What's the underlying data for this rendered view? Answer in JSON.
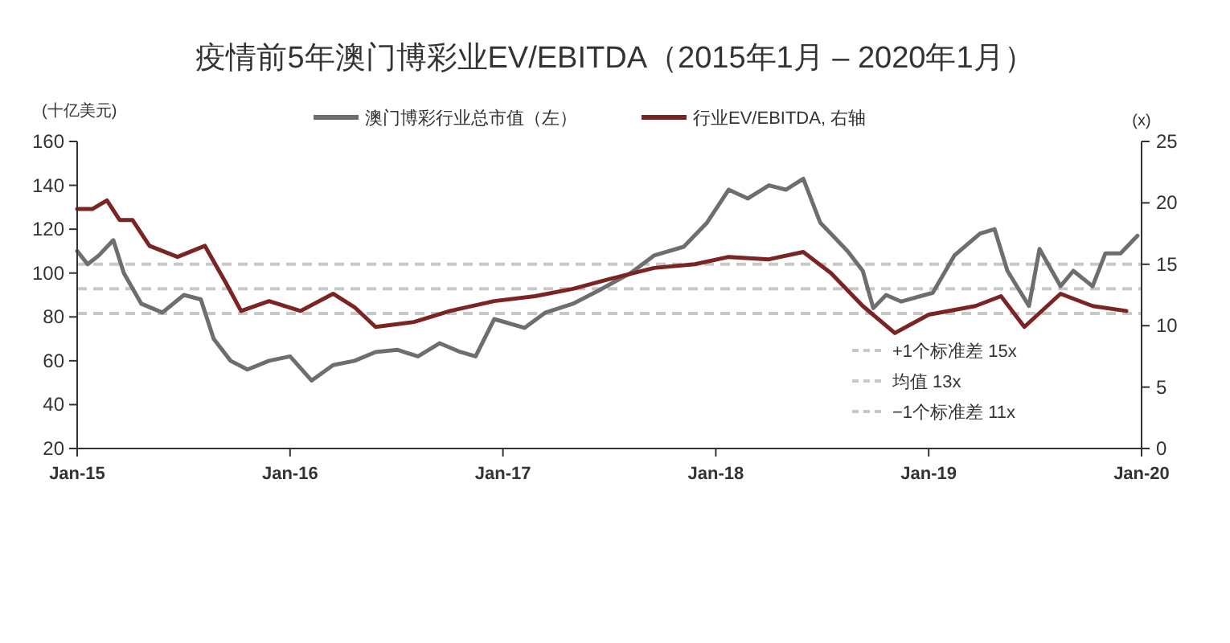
{
  "chart_data": {
    "type": "line",
    "title": "疫情前5年澳门博彩业EV/EBITDA（2015年1月 – 2020年1月）",
    "ylabel": "(十亿美元)",
    "y2label": "(x)",
    "xlim": [
      "2015-01-01",
      "2020-01-01"
    ],
    "xticks": [
      {
        "value": "2015-01-01",
        "label": "Jan-15"
      },
      {
        "value": "2016-01-01",
        "label": "Jan-16"
      },
      {
        "value": "2017-01-01",
        "label": "Jan-17"
      },
      {
        "value": "2018-01-01",
        "label": "Jan-18"
      },
      {
        "value": "2019-01-01",
        "label": "Jan-19"
      },
      {
        "value": "2020-01-01",
        "label": "Jan-20"
      }
    ],
    "ylim": [
      20,
      160
    ],
    "yticks": [
      20,
      40,
      60,
      80,
      100,
      120,
      140,
      160
    ],
    "y2lim": [
      0,
      25
    ],
    "y2ticks": [
      0,
      5,
      10,
      15,
      20,
      25
    ],
    "legend": "top",
    "grid": false,
    "marker": "none",
    "line_style": "solid",
    "series": [
      {
        "name": "澳门博彩行业总市值（左）",
        "color": "#6e6e6e",
        "x": [
          "2015-01-01",
          "2015-01-19",
          "2015-02-07",
          "2015-03-04",
          "2015-03-22",
          "2015-04-21",
          "2015-05-27",
          "2015-07-03",
          "2015-08-01",
          "2015-08-23",
          "2015-09-21",
          "2015-10-20",
          "2015-11-26",
          "2016-01-01",
          "2016-02-07",
          "2016-03-15",
          "2016-04-21",
          "2016-05-27",
          "2016-07-03",
          "2016-08-08",
          "2016-09-14",
          "2016-10-20",
          "2016-11-15",
          "2016-12-17",
          "2017-02-07",
          "2017-03-15",
          "2017-05-01",
          "2017-06-14",
          "2017-08-08",
          "2017-09-17",
          "2017-11-07",
          "2017-12-17",
          "2018-01-23",
          "2018-02-25",
          "2018-04-02",
          "2018-05-01",
          "2018-05-31",
          "2018-06-29",
          "2018-07-17",
          "2018-08-15",
          "2018-09-10",
          "2018-09-28",
          "2018-10-20",
          "2018-11-15",
          "2019-01-08",
          "2019-02-14",
          "2019-03-30",
          "2019-04-24",
          "2019-05-16",
          "2019-06-22",
          "2019-07-10",
          "2019-08-15",
          "2019-09-06",
          "2019-10-09",
          "2019-10-31",
          "2019-11-26",
          "2019-12-25"
        ],
        "values": [
          110,
          104,
          108,
          115,
          100,
          86,
          82,
          90,
          88,
          70,
          60,
          56,
          60,
          62,
          51,
          58,
          60,
          64,
          65,
          62,
          68,
          64,
          62,
          79,
          75,
          82,
          86,
          92,
          100,
          108,
          112,
          123,
          138,
          134,
          140,
          138,
          143,
          123,
          118,
          110,
          101,
          84,
          90,
          87,
          91,
          108,
          118,
          120,
          101,
          85,
          111,
          94,
          101,
          94,
          109,
          109,
          117
        ]
      },
      {
        "name": "行业EV/EBITDA, 右轴",
        "color": "#7b2424",
        "axis": "y2",
        "x": [
          "2015-01-01",
          "2015-01-27",
          "2015-02-21",
          "2015-03-15",
          "2015-04-06",
          "2015-05-05",
          "2015-06-22",
          "2015-08-08",
          "2015-09-14",
          "2015-10-09",
          "2015-11-26",
          "2016-01-19",
          "2016-03-15",
          "2016-04-21",
          "2016-05-27",
          "2016-08-01",
          "2016-10-02",
          "2016-12-17",
          "2017-02-25",
          "2017-05-01",
          "2017-07-03",
          "2017-09-17",
          "2017-11-26",
          "2018-01-23",
          "2018-04-02",
          "2018-05-31",
          "2018-07-17",
          "2018-09-10",
          "2018-11-04",
          "2019-01-01",
          "2019-03-22",
          "2019-05-05",
          "2019-06-14",
          "2019-08-15",
          "2019-10-09",
          "2019-12-06"
        ],
        "values": [
          19.5,
          19.5,
          20.2,
          18.6,
          18.6,
          16.5,
          15.6,
          16.5,
          13.4,
          11.2,
          12,
          11.2,
          12.6,
          11.5,
          9.9,
          10.3,
          11.2,
          12,
          12.4,
          13,
          13.8,
          14.7,
          15,
          15.6,
          15.4,
          16,
          14.3,
          11.6,
          9.4,
          10.9,
          11.6,
          12.4,
          9.9,
          12.6,
          11.6,
          11.2
        ]
      }
    ],
    "ref_lines": [
      {
        "axis": "y2",
        "value": 15,
        "label": "+1个标准差 15x",
        "color": "#c8c8c8",
        "line_style": "dashed"
      },
      {
        "axis": "y2",
        "value": 13,
        "label": "均值 13x",
        "color": "#c8c8c8",
        "line_style": "dashed"
      },
      {
        "axis": "y2",
        "value": 11,
        "label": "−1个标准差 11x",
        "color": "#c8c8c8",
        "line_style": "dashed"
      }
    ]
  }
}
